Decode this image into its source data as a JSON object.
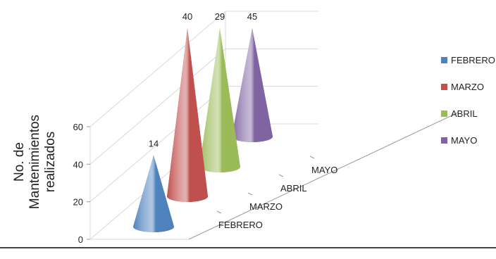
{
  "chart_data": {
    "type": "bar",
    "style": "3d-cone",
    "categories": [
      "FEBRERO",
      "MARZO",
      "ABRIL",
      "MAYO"
    ],
    "values": [
      14,
      40,
      29,
      45
    ],
    "ylabel_lines": [
      "No. de",
      "Mantenimientos",
      "realizados"
    ],
    "yticks": [
      "0",
      "20",
      "40",
      "60"
    ],
    "ylim": [
      0,
      60
    ],
    "grid": true,
    "legend": {
      "position": "right",
      "entries": [
        {
          "label": "FEBRERO",
          "color": "#4f81bd"
        },
        {
          "label": "MARZO",
          "color": "#c0504d"
        },
        {
          "label": "ABRIL",
          "color": "#9bbb59"
        },
        {
          "label": "MAYO",
          "color": "#8064a2"
        }
      ]
    },
    "colors": [
      "#4f81bd",
      "#c0504d",
      "#9bbb59",
      "#8064a2"
    ]
  }
}
